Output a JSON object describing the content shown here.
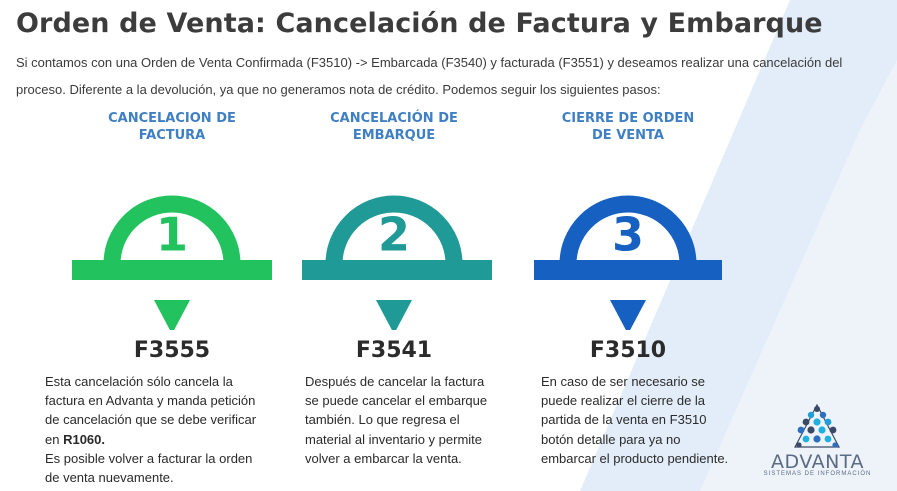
{
  "title": "Orden de Venta:  Cancelación de Factura y Embarque",
  "intro": "Si contamos con una Orden de Venta Confirmada (F3510) -> Embarcada (F3540) y facturada (F3551) y deseamos realizar una cancelación del proceso. Diferente a la devolución, ya que no generamos nota de crédito. Podemos seguir los siguientes pasos:",
  "steps": [
    {
      "heading_line1": "CANCELACION DE",
      "heading_line2": "FACTURA",
      "number": "1",
      "code": "F3555",
      "color": "#22c35e",
      "desc_line1": "Esta cancelación sólo cancela la",
      "desc_line2": "factura en Advanta y manda petición",
      "desc_line3": "de cancelación que se debe verificar",
      "desc_line4_prefix": "en ",
      "desc_line4_bold": "R1060.",
      "desc_line5": "Es posible volver a facturar la orden",
      "desc_line6": "de venta nuevamente."
    },
    {
      "heading_line1": "CANCELACIÓN DE",
      "heading_line2": "EMBARQUE",
      "number": "2",
      "code": "F3541",
      "color": "#1f9a96",
      "desc_line1": "Después de cancelar la factura",
      "desc_line2": "se puede cancelar el embarque",
      "desc_line3": "también. Lo que regresa el",
      "desc_line4": "material al inventario y permite",
      "desc_line5": "volver a embarcar la venta."
    },
    {
      "heading_line1": "CIERRE DE ORDEN",
      "heading_line2": "DE VENTA",
      "number": "3",
      "code": "F3510",
      "color": "#1560c0",
      "desc_line1": "En caso de ser necesario se",
      "desc_line2": "puede realizar el cierre de la",
      "desc_line3": "partida de la venta en F3510",
      "desc_line4": "botón detalle para ya no",
      "desc_line5": "embarcar el producto pendiente."
    }
  ],
  "logo": {
    "word": "ADVANTA",
    "sub": "SISTEMAS DE INFORMACIÓN"
  },
  "colors": {
    "heading": "#3f7fc4",
    "stripe": "#dfeaf7"
  }
}
